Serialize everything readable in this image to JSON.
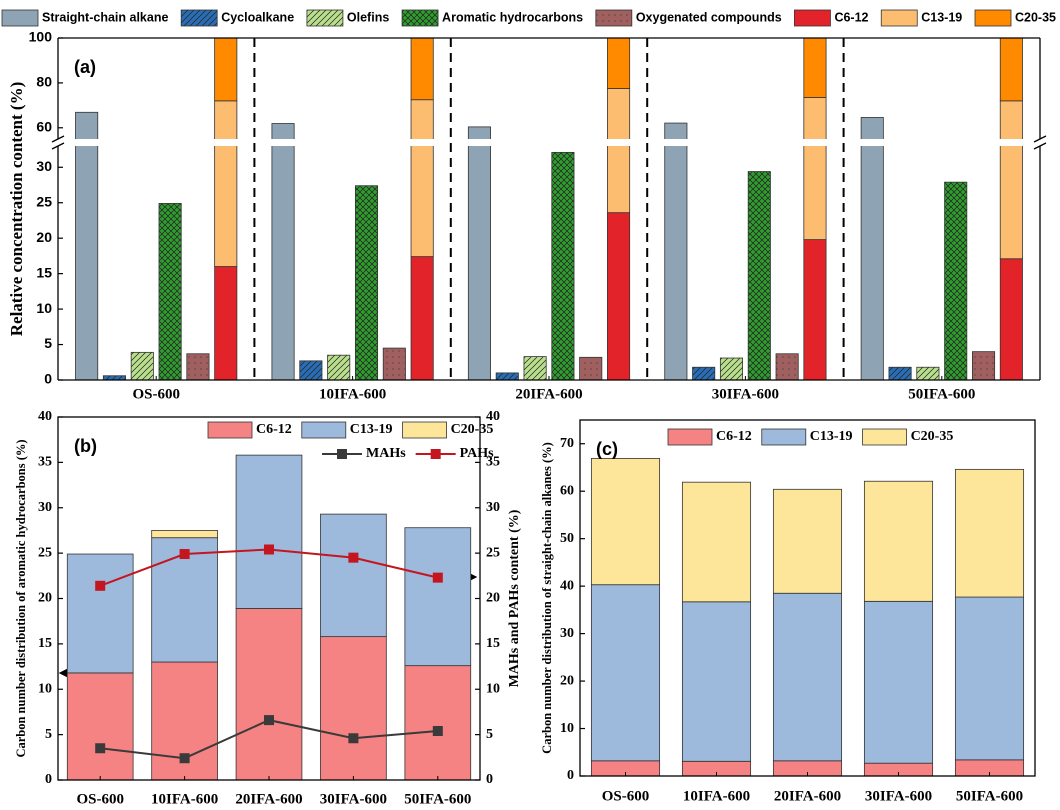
{
  "chart_data": [
    {
      "type": "bar",
      "panel_label": "(a)",
      "ylabel": "Relative concentration content (%)",
      "categories": [
        "OS-600",
        "10IFA-600",
        "20IFA-600",
        "30IFA-600",
        "50IFA-600"
      ],
      "ylim": [
        0,
        100
      ],
      "ybreak": [
        33,
        55
      ],
      "yticks": [
        0,
        5,
        10,
        15,
        20,
        25,
        30,
        60,
        80,
        100
      ],
      "category_separators": true,
      "legend": "top",
      "series": [
        {
          "name": "Straight-chain alkane",
          "color": "#8ea3b3",
          "values": [
            66.9,
            61.9,
            60.4,
            62.1,
            64.6
          ]
        },
        {
          "name": "Cycloalkane",
          "color": "#2a6db5",
          "hatch": "diagonal",
          "values": [
            0.6,
            2.7,
            1.0,
            1.8,
            1.8
          ]
        },
        {
          "name": "Olefins",
          "color": "#b9df8c",
          "hatch": "diagonal",
          "values": [
            3.9,
            3.5,
            3.3,
            3.1,
            1.8
          ]
        },
        {
          "name": "Aromatic hydrocarbons",
          "color": "#2f9e2f",
          "hatch": "cross",
          "values": [
            24.9,
            27.4,
            32.1,
            29.4,
            27.9
          ]
        },
        {
          "name": "Oxygenated compounds",
          "color": "#a0605f",
          "hatch": "dots",
          "values": [
            3.7,
            4.5,
            3.2,
            3.7,
            4.0
          ]
        },
        {
          "name": "C6-12",
          "color": "#e3232a",
          "stack": "carbon",
          "values": [
            16.0,
            17.4,
            23.6,
            19.8,
            17.1
          ]
        },
        {
          "name": "C13-19",
          "color": "#fdbd71",
          "stack": "carbon",
          "values": [
            56.0,
            55.1,
            53.9,
            53.7,
            54.9
          ]
        },
        {
          "name": "C20-35",
          "color": "#ff8a00",
          "stack": "carbon",
          "values": [
            28.0,
            27.5,
            22.5,
            26.5,
            28.0
          ]
        }
      ]
    },
    {
      "type": "bar",
      "panel_label": "(b)",
      "ylabel": "Carbon number distribution of aromatic hydrocarbons (%)",
      "y2label": "MAHs and PAHs content (%)",
      "categories": [
        "OS-600",
        "10IFA-600",
        "20IFA-600",
        "30IFA-600",
        "50IFA-600"
      ],
      "ylim": [
        0,
        40
      ],
      "yticks": [
        0,
        5,
        10,
        15,
        20,
        25,
        30,
        35,
        40
      ],
      "y2lim": [
        0,
        40
      ],
      "y2ticks": [
        0,
        5,
        10,
        15,
        20,
        25,
        30,
        35,
        40
      ],
      "legend": "top",
      "series": [
        {
          "name": "C6-12",
          "color": "#f58383",
          "stack": "carbon",
          "values": [
            11.8,
            13.0,
            18.9,
            15.8,
            12.6
          ]
        },
        {
          "name": "C13-19",
          "color": "#9db9dc",
          "stack": "carbon",
          "values": [
            13.1,
            13.7,
            16.9,
            13.5,
            15.2
          ]
        },
        {
          "name": "C20-35",
          "color": "#fde69a",
          "stack": "carbon",
          "values": [
            0,
            0.8,
            0,
            0,
            0
          ]
        },
        {
          "name": "MAHs",
          "type": "line",
          "axis": "y2",
          "color": "#3a3a3a",
          "values": [
            3.5,
            2.4,
            6.6,
            4.6,
            5.4
          ]
        },
        {
          "name": "PAHs",
          "type": "line",
          "axis": "y2",
          "color": "#c3161f",
          "values": [
            21.4,
            24.9,
            25.4,
            24.5,
            22.3
          ]
        }
      ]
    },
    {
      "type": "bar",
      "panel_label": "(c)",
      "ylabel": "Carbon number distribution of straight-chain alkanes (%)",
      "categories": [
        "OS-600",
        "10IFA-600",
        "20IFA-600",
        "30IFA-600",
        "50IFA-600"
      ],
      "ylim": [
        0,
        75
      ],
      "yticks": [
        0,
        10,
        20,
        30,
        40,
        50,
        60,
        70
      ],
      "legend": "top",
      "series": [
        {
          "name": "C6-12",
          "color": "#f58383",
          "stack": "carbon",
          "values": [
            3.2,
            3.1,
            3.2,
            2.7,
            3.4
          ]
        },
        {
          "name": "C13-19",
          "color": "#9db9dc",
          "stack": "carbon",
          "values": [
            37.1,
            33.6,
            35.3,
            34.1,
            34.3
          ]
        },
        {
          "name": "C20-35",
          "color": "#fde69a",
          "stack": "carbon",
          "values": [
            26.6,
            25.2,
            21.9,
            25.3,
            26.9
          ]
        }
      ]
    }
  ]
}
